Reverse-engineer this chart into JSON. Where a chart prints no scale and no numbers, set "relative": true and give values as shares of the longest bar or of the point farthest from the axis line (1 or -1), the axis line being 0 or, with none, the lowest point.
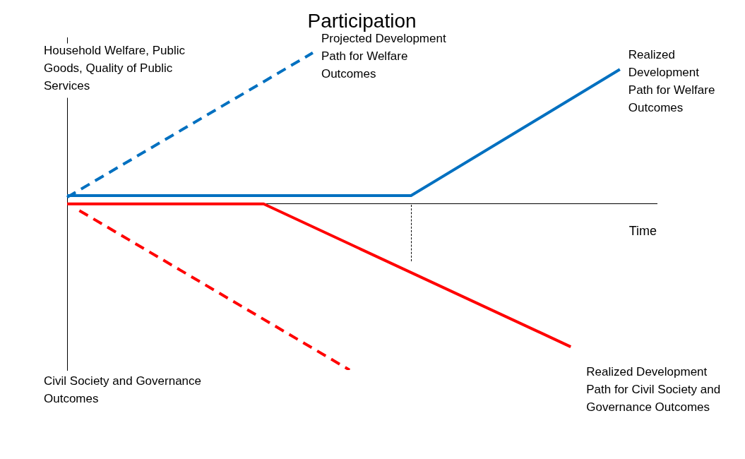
{
  "chart_data": {
    "type": "line",
    "title": "Participation",
    "xlabel": "Time",
    "relative": true,
    "legend": false,
    "grid": false,
    "marker": "none",
    "categories": [
      null,
      null,
      null,
      null,
      null,
      null,
      null,
      null,
      null,
      null,
      null,
      null,
      null,
      null,
      null,
      null,
      null,
      null,
      null,
      null,
      null,
      null,
      null,
      null,
      null,
      null,
      null,
      null,
      null,
      null,
      null,
      null,
      null,
      null,
      null,
      null,
      null,
      null,
      null,
      null,
      null,
      null,
      null,
      null,
      null,
      null,
      null,
      null,
      null
    ],
    "series": [
      {
        "name": "Projected Development Path for Welfare Outcomes",
        "color": "#0070c0",
        "line_style": "dashed",
        "values": [
          0.04,
          null,
          null,
          null,
          null,
          null,
          null,
          null,
          null,
          null,
          null,
          null,
          null,
          null,
          null,
          null,
          null,
          null,
          null,
          null,
          0.91,
          null,
          null,
          null,
          null,
          null,
          null,
          null,
          null,
          null,
          null,
          null,
          null,
          null,
          null,
          null,
          null,
          null,
          null,
          null,
          null,
          null,
          null,
          null,
          null,
          null,
          null,
          null,
          null
        ]
      },
      {
        "name": "Realized Development Path for Welfare Outcomes",
        "color": "#0070c0",
        "line_style": "solid",
        "values": [
          0.05,
          null,
          null,
          null,
          null,
          null,
          null,
          null,
          null,
          null,
          null,
          null,
          null,
          null,
          null,
          null,
          null,
          null,
          null,
          null,
          null,
          null,
          null,
          null,
          null,
          null,
          null,
          null,
          0.05,
          null,
          null,
          null,
          null,
          null,
          null,
          null,
          null,
          null,
          null,
          null,
          null,
          null,
          null,
          null,
          null,
          0.81,
          null,
          null,
          null
        ]
      },
      {
        "color": "#ff0000",
        "line_style": "dashed",
        "values": [
          null,
          -0.04,
          null,
          null,
          null,
          null,
          null,
          null,
          null,
          null,
          null,
          null,
          null,
          null,
          null,
          null,
          null,
          null,
          null,
          null,
          null,
          null,
          null,
          -1,
          null,
          null,
          null,
          null,
          null,
          null,
          null,
          null,
          null,
          null,
          null,
          null,
          null,
          null,
          null,
          null,
          null,
          null,
          null,
          null,
          null,
          null,
          null,
          null,
          null
        ]
      },
      {
        "name": "Realized Development Path for Civil Society and Governance Outcomes",
        "color": "#ff0000",
        "line_style": "solid",
        "values": [
          0,
          null,
          null,
          null,
          null,
          null,
          null,
          null,
          null,
          null,
          null,
          null,
          null,
          null,
          null,
          null,
          0,
          null,
          null,
          null,
          null,
          null,
          null,
          null,
          null,
          null,
          null,
          null,
          null,
          null,
          null,
          null,
          null,
          null,
          null,
          null,
          null,
          null,
          null,
          null,
          null,
          -0.86,
          null,
          null,
          null,
          null,
          null,
          null,
          null
        ]
      }
    ],
    "annotations": [
      "Household Welfare, Public Goods, Quality of Public Services",
      "Civil Society and Governance Outcomes"
    ]
  }
}
